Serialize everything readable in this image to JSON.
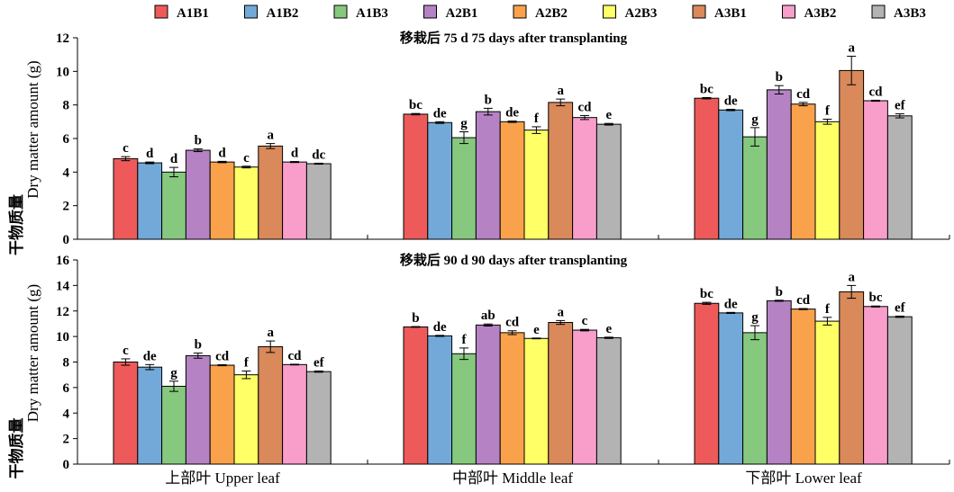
{
  "chart_data": [
    {
      "type": "bar",
      "title": "移栽后 75 d  75 days after transplanting",
      "ylabel_cn": "干物质量",
      "ylabel_en": "Dry matter amount (g)",
      "ylim": [
        0,
        12
      ],
      "yticks": [
        0,
        2,
        4,
        6,
        8,
        10,
        12
      ],
      "categories": [
        "上部叶 Upper leaf",
        "中部叶 Middle leaf",
        "下部叶 Lower leaf"
      ],
      "series": [
        {
          "name": "A1B1",
          "values": [
            4.8,
            7.45,
            8.4
          ],
          "errors": [
            0.12,
            0.04,
            0.04
          ],
          "letters": [
            "c",
            "bc",
            "bc"
          ]
        },
        {
          "name": "A1B2",
          "values": [
            4.55,
            6.95,
            7.7
          ],
          "errors": [
            0.05,
            0.05,
            0.04
          ],
          "letters": [
            "d",
            "de",
            "de"
          ]
        },
        {
          "name": "A1B3",
          "values": [
            4.0,
            6.05,
            6.1
          ],
          "errors": [
            0.28,
            0.35,
            0.55
          ],
          "letters": [
            "d",
            "g",
            "g"
          ]
        },
        {
          "name": "A2B1",
          "values": [
            5.3,
            7.6,
            8.9
          ],
          "errors": [
            0.08,
            0.2,
            0.25
          ],
          "letters": [
            "b",
            "b",
            "b"
          ]
        },
        {
          "name": "A2B2",
          "values": [
            4.6,
            7.0,
            8.05
          ],
          "errors": [
            0.04,
            0.04,
            0.1
          ],
          "letters": [
            "d",
            "de",
            "cd"
          ]
        },
        {
          "name": "A2B3",
          "values": [
            4.3,
            6.5,
            7.0
          ],
          "errors": [
            0.05,
            0.2,
            0.15
          ],
          "letters": [
            "c",
            "f",
            "f"
          ]
        },
        {
          "name": "A3B1",
          "values": [
            5.55,
            8.15,
            10.05
          ],
          "errors": [
            0.15,
            0.2,
            0.85
          ],
          "letters": [
            "a",
            "a",
            "a"
          ]
        },
        {
          "name": "A3B2",
          "values": [
            4.6,
            7.25,
            8.25
          ],
          "errors": [
            0.03,
            0.12,
            0.03
          ],
          "letters": [
            "d",
            "cd",
            "cd"
          ]
        },
        {
          "name": "A3B3",
          "values": [
            4.5,
            6.85,
            7.35
          ],
          "errors": [
            0.03,
            0.05,
            0.12
          ],
          "letters": [
            "dc",
            "e",
            "ef"
          ]
        }
      ]
    },
    {
      "type": "bar",
      "title": "移栽后 90 d  90 days after transplanting",
      "ylabel_cn": "干物质量",
      "ylabel_en": "Dry matter amount (g)",
      "ylim": [
        0,
        16
      ],
      "yticks": [
        0,
        2,
        4,
        6,
        8,
        10,
        12,
        14,
        16
      ],
      "categories": [
        "上部叶 Upper leaf",
        "中部叶 Middle leaf",
        "下部叶 Lower leaf"
      ],
      "series": [
        {
          "name": "A1B1",
          "values": [
            8.0,
            10.75,
            12.6
          ],
          "errors": [
            0.25,
            0.03,
            0.08
          ],
          "letters": [
            "c",
            "b",
            "bc"
          ]
        },
        {
          "name": "A1B2",
          "values": [
            7.6,
            10.05,
            11.85
          ],
          "errors": [
            0.2,
            0.04,
            0.04
          ],
          "letters": [
            "de",
            "de",
            "de"
          ]
        },
        {
          "name": "A1B3",
          "values": [
            6.1,
            8.65,
            10.3
          ],
          "errors": [
            0.4,
            0.45,
            0.55
          ],
          "letters": [
            "g",
            "f",
            "g"
          ]
        },
        {
          "name": "A2B1",
          "values": [
            8.5,
            10.9,
            12.8
          ],
          "errors": [
            0.2,
            0.08,
            0.04
          ],
          "letters": [
            "b",
            "ab",
            "b"
          ]
        },
        {
          "name": "A2B2",
          "values": [
            7.75,
            10.3,
            12.15
          ],
          "errors": [
            0.04,
            0.15,
            0.04
          ],
          "letters": [
            "cd",
            "cd",
            "cd"
          ]
        },
        {
          "name": "A2B3",
          "values": [
            7.0,
            9.85,
            11.2
          ],
          "errors": [
            0.3,
            0.03,
            0.3
          ],
          "letters": [
            "f",
            "e",
            "f"
          ]
        },
        {
          "name": "A3B1",
          "values": [
            9.2,
            11.1,
            13.5
          ],
          "errors": [
            0.45,
            0.15,
            0.5
          ],
          "letters": [
            "a",
            "a",
            "a"
          ]
        },
        {
          "name": "A3B2",
          "values": [
            7.8,
            10.5,
            12.35
          ],
          "errors": [
            0.03,
            0.06,
            0.04
          ],
          "letters": [
            "cd",
            "c",
            "bc"
          ]
        },
        {
          "name": "A3B3",
          "values": [
            7.25,
            9.9,
            11.55
          ],
          "errors": [
            0.05,
            0.05,
            0.05
          ],
          "letters": [
            "ef",
            "e",
            "ef"
          ]
        }
      ]
    }
  ],
  "legend": [
    {
      "name": "A1B1",
      "color": "#ee5a5a"
    },
    {
      "name": "A1B2",
      "color": "#72a9d8"
    },
    {
      "name": "A1B3",
      "color": "#86c97e"
    },
    {
      "name": "A2B1",
      "color": "#b583c4"
    },
    {
      "name": "A2B2",
      "color": "#f9a24b"
    },
    {
      "name": "A2B3",
      "color": "#ffff66"
    },
    {
      "name": "A3B1",
      "color": "#d9895a"
    },
    {
      "name": "A3B2",
      "color": "#f99ecb"
    },
    {
      "name": "A3B3",
      "color": "#b3b3b3"
    }
  ]
}
